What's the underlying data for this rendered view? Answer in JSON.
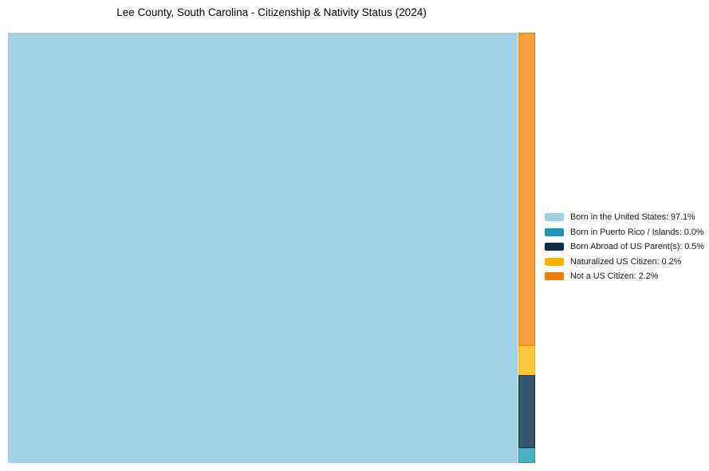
{
  "page": {
    "background": "#ffffff"
  },
  "chart_data": {
    "type": "treemap",
    "title": "Lee County, South Carolina - Citizenship & Nativity Status (2024)",
    "unit": "%",
    "legend_position": "right-center",
    "grid": false,
    "categories": [
      "Born in the United States",
      "Born in Puerto Rico / Islands",
      "Born Abroad of US Parent(s)",
      "Naturalized US Citizen",
      "Not a US Citizen"
    ],
    "values": [
      97.1,
      0.0,
      0.5,
      0.2,
      2.2
    ],
    "series": [
      {
        "name": "Born in the United States",
        "value": 97.1,
        "legend_label": "Born in the United States: 97.1%",
        "color": "#A3CFE5",
        "tile_color": "#A4D1E8"
      },
      {
        "name": "Born in Puerto Rico / Islands",
        "value": 0.0,
        "legend_label": "Born in Puerto Rico / Islands: 0.0%",
        "color": "#2196B0",
        "tile_color": "#4BB2C4"
      },
      {
        "name": "Born Abroad of US Parent(s)",
        "value": 0.5,
        "legend_label": "Born Abroad of US Parent(s): 0.5%",
        "color": "#0D2F45",
        "tile_color": "#36586C"
      },
      {
        "name": "Naturalized US Citizen",
        "value": 0.2,
        "legend_label": "Naturalized US Citizen: 0.2%",
        "color": "#FFB301",
        "tile_color": "#FFC742"
      },
      {
        "name": "Not a US Citizen",
        "value": 2.2,
        "legend_label": "Not a US Citizen: 2.2%",
        "color": "#F17D00",
        "tile_color": "#F9A03C"
      }
    ]
  }
}
